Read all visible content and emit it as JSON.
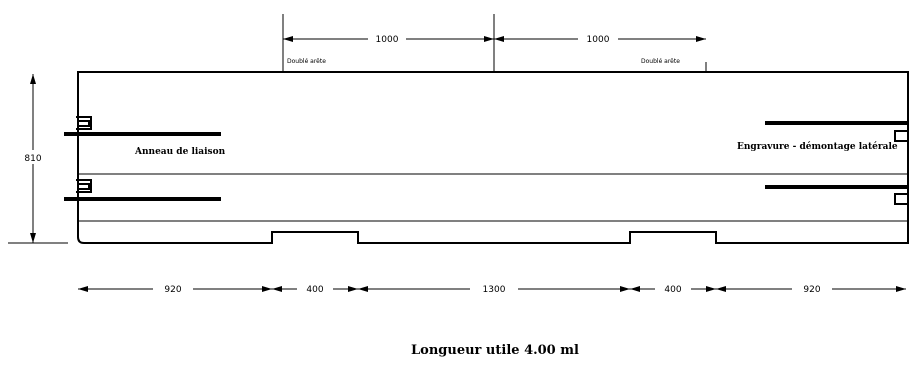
{
  "top_dimensions": {
    "left_value": "1000",
    "right_value": "1000",
    "left_label": "Doublé arête",
    "right_label": "Doublé arête"
  },
  "height_dimension": "810",
  "labels": {
    "left_zone": "Anneau de liaison",
    "right_zone": "Engravure - démontage latérale"
  },
  "bottom_dimensions": [
    "920",
    "400",
    "1300",
    "400",
    "920"
  ],
  "footer_title": "Longueur utile 4.00 ml"
}
